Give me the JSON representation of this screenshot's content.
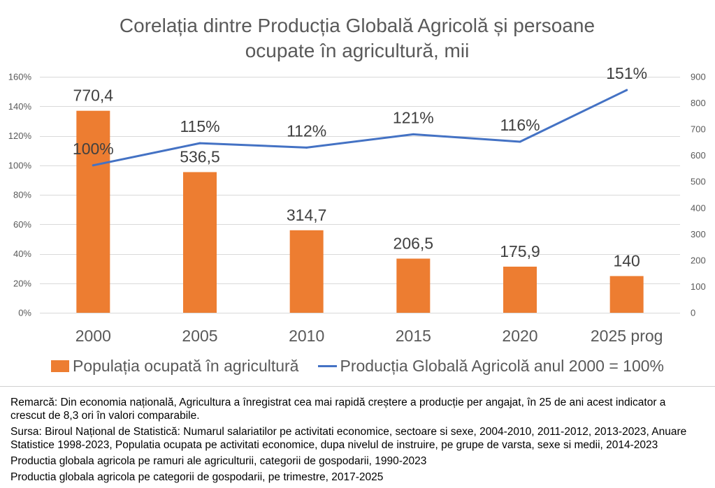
{
  "chart_data": {
    "type": "bar",
    "title": "Corelația dintre Producția Globală Agricolă și persoane ocupate în agricultură, mii",
    "categories": [
      "2000",
      "2005",
      "2010",
      "2015",
      "2020",
      "2025 prog"
    ],
    "series": [
      {
        "name": "Populația ocupată în agricultură",
        "type": "bar",
        "y_axis": "right",
        "color": "#ED7D31",
        "values": [
          770.4,
          536.5,
          314.7,
          206.5,
          175.9,
          140
        ],
        "data_labels": [
          "770,4",
          "536,5",
          "314,7",
          "206,5",
          "175,9",
          "140"
        ]
      },
      {
        "name": "Producția Globală Agricolă anul 2000 = 100%",
        "type": "line",
        "y_axis": "left",
        "color": "#4472C4",
        "values": [
          100,
          115,
          112,
          121,
          116,
          151
        ],
        "data_labels": [
          "100%",
          "115%",
          "112%",
          "121%",
          "116%",
          "151%"
        ]
      }
    ],
    "y_left": {
      "range": [
        0,
        160
      ],
      "ticks": [
        0,
        20,
        40,
        60,
        80,
        100,
        120,
        140,
        160
      ],
      "tick_labels": [
        "0%",
        "20%",
        "40%",
        "60%",
        "80%",
        "100%",
        "120%",
        "140%",
        "160%"
      ]
    },
    "y_right": {
      "range": [
        0,
        900
      ],
      "ticks": [
        0,
        100,
        200,
        300,
        400,
        500,
        600,
        700,
        800,
        900
      ],
      "tick_labels": [
        "0",
        "100",
        "200",
        "300",
        "400",
        "500",
        "600",
        "700",
        "800",
        "900"
      ]
    },
    "grid": true,
    "legend": "bottom"
  },
  "notes": [
    "Remarcă: Din economia națională, Agricultura a înregistrat cea mai rapidă creștere a producție per angajat, în 25 de ani acest indicator a crescut de 8,3 ori în valori comparabile.",
    "Sursa: Biroul Național de Statistică: Numarul salariatilor pe activitati economice, sectoare si sexe, 2004-2010, 2011-2012, 2013-2023, Anuare Statistice 1998-2023, Populatia ocupata pe activitati economice, dupa nivelul de instruire, pe grupe de varsta, sexe si medii, 2014-2023",
    "Productia globala agricola pe ramuri ale agriculturii, categorii de gospodarii, 1990-2023",
    "Productia globala agricola pe categorii de gospodarii, pe trimestre, 2017-2025"
  ]
}
